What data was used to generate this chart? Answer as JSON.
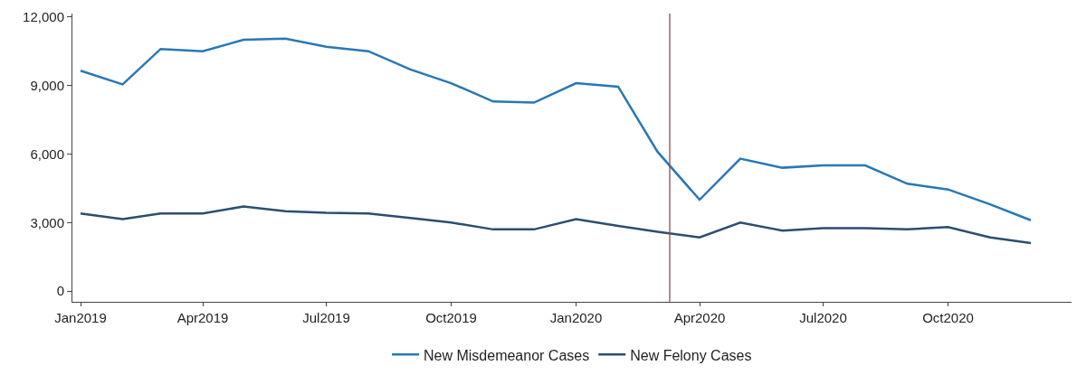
{
  "chart_data": {
    "type": "line",
    "x": [
      "2019-01",
      "2019-02",
      "2019-03",
      "2019-04",
      "2019-05",
      "2019-06",
      "2019-07",
      "2019-08",
      "2019-09",
      "2019-10",
      "2019-11",
      "2019-12",
      "2020-01",
      "2020-02",
      "2020-03",
      "2020-04",
      "2020-05",
      "2020-06",
      "2020-07",
      "2020-08",
      "2020-09",
      "2020-10",
      "2020-11",
      "2020-12"
    ],
    "series": [
      {
        "name": "New Misdemeanor Cases",
        "color": "#2878b5",
        "values": [
          9650,
          9050,
          10600,
          10500,
          11000,
          11050,
          10700,
          10500,
          9700,
          9100,
          8300,
          8250,
          9100,
          8950,
          6100,
          4000,
          5800,
          5400,
          5500,
          5500,
          4700,
          4450,
          3800,
          3100
        ]
      },
      {
        "name": "New Felony Cases",
        "color": "#2d4e6e",
        "values": [
          3400,
          3150,
          3400,
          3400,
          3700,
          3500,
          3430,
          3400,
          3200,
          3000,
          2700,
          2700,
          3150,
          2850,
          2600,
          2350,
          3000,
          2650,
          2750,
          2750,
          2700,
          2800,
          2350,
          2100
        ]
      }
    ],
    "xlim": [
      "2018-12-26",
      "2020-12-31"
    ],
    "xticks": [
      {
        "value": "2019-01-01",
        "label": "Jan2019"
      },
      {
        "value": "2019-04-01",
        "label": "Apr2019"
      },
      {
        "value": "2019-07-01",
        "label": "Jul2019"
      },
      {
        "value": "2019-10-01",
        "label": "Oct2019"
      },
      {
        "value": "2020-01-01",
        "label": "Jan2020"
      },
      {
        "value": "2020-04-01",
        "label": "Apr2020"
      },
      {
        "value": "2020-07-01",
        "label": "Jul2020"
      },
      {
        "value": "2020-10-01",
        "label": "Oct2020"
      }
    ],
    "ylim": [
      -470,
      12150
    ],
    "yticks": [
      {
        "value": 0,
        "label": "0"
      },
      {
        "value": 3000,
        "label": "3,000"
      },
      {
        "value": 6000,
        "label": "6,000"
      },
      {
        "value": 9000,
        "label": "9,000"
      },
      {
        "value": 12000,
        "label": "12,000"
      }
    ],
    "ref_lines": [
      {
        "axis": "x",
        "value": "2020-03-10",
        "color": "#8b4a55"
      }
    ],
    "legend": "bottom",
    "marker": "none",
    "line_style": "solid"
  }
}
